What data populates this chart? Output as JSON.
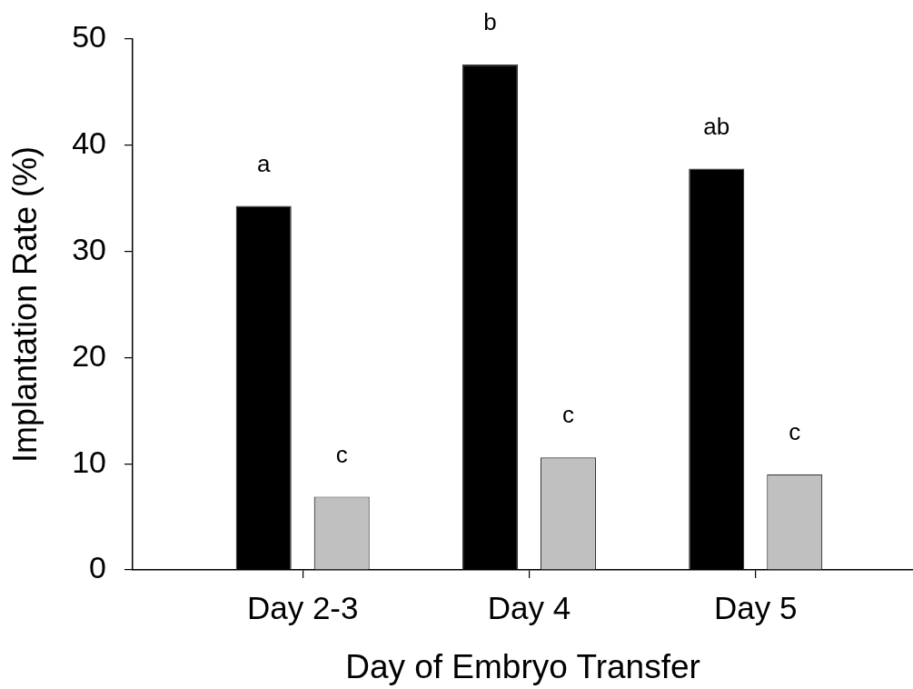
{
  "chart_data": {
    "type": "bar",
    "xlabel": "Day of Embryo Transfer",
    "ylabel": "Implantation Rate (%)",
    "categories": [
      "Day 2-3",
      "Day 4",
      "Day 5"
    ],
    "series": [
      {
        "color": "#000000",
        "values": [
          34.3,
          47.6,
          37.8
        ],
        "value_labels": [
          "a",
          "b",
          "ab"
        ]
      },
      {
        "color": "#c0c0c0",
        "values": [
          6.9,
          10.6,
          9.0
        ],
        "value_labels": [
          "c",
          "c",
          "c"
        ]
      }
    ],
    "ylim": [
      0,
      50
    ],
    "yticks": [
      0,
      10,
      20,
      30,
      40,
      50
    ],
    "grid": false,
    "legend": false
  }
}
